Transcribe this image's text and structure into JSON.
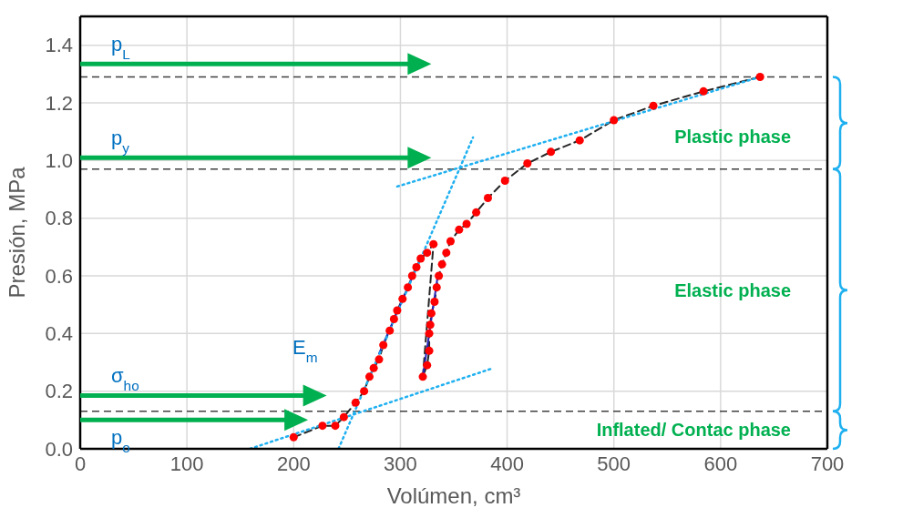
{
  "chart_data": {
    "type": "line",
    "xlabel": "Volúmen, cm³",
    "ylabel": "Presión, MPa",
    "xlim": [
      0,
      700
    ],
    "xticks": [
      0,
      100,
      200,
      300,
      400,
      500,
      600,
      700
    ],
    "ylim": [
      0,
      1.5
    ],
    "yticks": [
      {
        "value": 0,
        "label": "0.0"
      },
      {
        "value": 0.2,
        "label": "0.2"
      },
      {
        "value": 0.4,
        "label": "0.4"
      },
      {
        "value": 0.6,
        "label": "0.6"
      },
      {
        "value": 0.8,
        "label": "0.8"
      },
      {
        "value": 1.0,
        "label": "1.0"
      },
      {
        "value": 1.2,
        "label": "1.2"
      },
      {
        "value": 1.4,
        "label": "1.4"
      }
    ],
    "grid": true,
    "series": [
      {
        "color": "#262626",
        "line_style": "dashed",
        "marker": "none",
        "x": [
          200,
          227,
          239,
          247,
          258,
          266,
          271,
          275,
          280,
          284,
          290,
          294,
          297,
          302,
          307,
          311,
          315,
          319,
          325,
          331,
          321,
          325,
          327,
          327,
          328,
          329,
          332,
          334,
          336,
          339,
          343,
          347,
          355,
          362,
          371,
          382,
          398,
          419,
          441,
          468,
          500,
          537,
          584,
          637
        ],
        "values": [
          0.04,
          0.08,
          0.08,
          0.11,
          0.16,
          0.2,
          0.25,
          0.28,
          0.31,
          0.36,
          0.41,
          0.45,
          0.48,
          0.52,
          0.56,
          0.6,
          0.63,
          0.66,
          0.68,
          0.71,
          0.25,
          0.29,
          0.34,
          0.4,
          0.43,
          0.47,
          0.51,
          0.56,
          0.6,
          0.64,
          0.68,
          0.72,
          0.76,
          0.78,
          0.82,
          0.87,
          0.93,
          0.99,
          1.03,
          1.07,
          1.14,
          1.19,
          1.24,
          1.29
        ]
      },
      {
        "type": "scatter",
        "color": "#ff0000",
        "marker": "circle",
        "x": [
          200,
          227,
          239,
          247,
          258,
          266,
          271,
          275,
          280,
          284,
          290,
          294,
          297,
          302,
          307,
          311,
          315,
          319,
          325,
          331,
          321,
          325,
          327,
          327,
          328,
          329,
          332,
          334,
          336,
          339,
          343,
          347,
          355,
          362,
          371,
          382,
          398,
          419,
          441,
          468,
          500,
          537,
          584,
          637
        ],
        "values": [
          0.04,
          0.08,
          0.08,
          0.11,
          0.16,
          0.2,
          0.25,
          0.28,
          0.31,
          0.36,
          0.41,
          0.45,
          0.48,
          0.52,
          0.56,
          0.6,
          0.63,
          0.66,
          0.68,
          0.71,
          0.25,
          0.29,
          0.34,
          0.4,
          0.43,
          0.47,
          0.51,
          0.56,
          0.6,
          0.64,
          0.68,
          0.72,
          0.76,
          0.78,
          0.82,
          0.87,
          0.93,
          0.99,
          1.03,
          1.07,
          1.14,
          1.19,
          1.24,
          1.29
        ]
      },
      {
        "color": "#2424b8",
        "line_style": "solid",
        "marker": "none",
        "x": [
          280,
          320
        ],
        "values": [
          0.33,
          0.67
        ]
      },
      {
        "color": "#2424b8",
        "line_style": "solid",
        "marker": "none",
        "x": [
          321,
          335
        ],
        "values": [
          0.25,
          0.6
        ]
      },
      {
        "color": "#1fb0f0",
        "line_style": "dotted",
        "marker": "none",
        "x": [
          159,
          387
        ],
        "values": [
          0,
          0.28
        ]
      },
      {
        "color": "#1fb0f0",
        "line_style": "dotted",
        "marker": "none",
        "x": [
          242,
          368
        ],
        "values": [
          0,
          1.08
        ]
      },
      {
        "color": "#1fb0f0",
        "line_style": "dotted",
        "marker": "none",
        "x": [
          297,
          637
        ],
        "values": [
          0.91,
          1.29
        ]
      }
    ],
    "ref_lines": [
      {
        "axis": "y",
        "value": 1.335,
        "label": "p$_{L}$",
        "color": "#00b050",
        "line_style": "solid"
      },
      {
        "axis": "y",
        "value": 1.01,
        "label": "p$_{y}$",
        "color": "#00b050",
        "line_style": "solid"
      },
      {
        "axis": "y",
        "value": 0.185,
        "label": "σ$_{ho}$",
        "color": "#00b050",
        "line_style": "solid"
      },
      {
        "axis": "y",
        "value": 0.1,
        "label": "p$_{o}$",
        "color": "#00b050",
        "line_style": "solid"
      },
      {
        "axis": "y",
        "value": 1.29,
        "color": "#404040",
        "line_style": "dashed"
      },
      {
        "axis": "y",
        "value": 0.97,
        "color": "#404040",
        "line_style": "dashed"
      },
      {
        "axis": "y",
        "value": 0.13,
        "color": "#404040",
        "line_style": "dashed"
      }
    ],
    "annotations": [
      "E$_{m}$",
      "Plastic phase",
      "Elastic phase",
      "Inflated/ Contac phase"
    ]
  }
}
